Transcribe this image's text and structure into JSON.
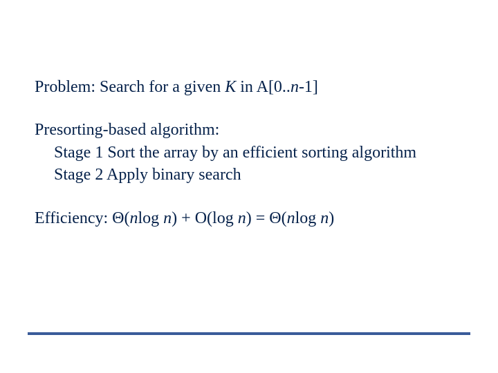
{
  "text_color": "#05214a",
  "rule_color": "#3a5b99",
  "background_color": "#ffffff",
  "slide_width": 720,
  "slide_height": 540,
  "font_family": "Times New Roman",
  "body_fontsize": 24,
  "problem": {
    "prefix": "Problem: Search for a given ",
    "K": "K",
    "mid": " in A[0..",
    "n": "n",
    "suffix": "-1]"
  },
  "algo": {
    "title": "Presorting-based algorithm:",
    "stage1": "Stage 1  Sort the array by an efficient sorting algorithm",
    "stage2": " Stage 2  Apply binary search"
  },
  "eff": {
    "prefix": "Efficiency: Θ(",
    "n1": "n",
    "t1": "log ",
    "n2": "n",
    "t2": ") + O(log ",
    "n3": "n",
    "t3": ") = Θ(",
    "n4": "n",
    "t4": "log ",
    "n5": "n",
    "t5": ")"
  }
}
